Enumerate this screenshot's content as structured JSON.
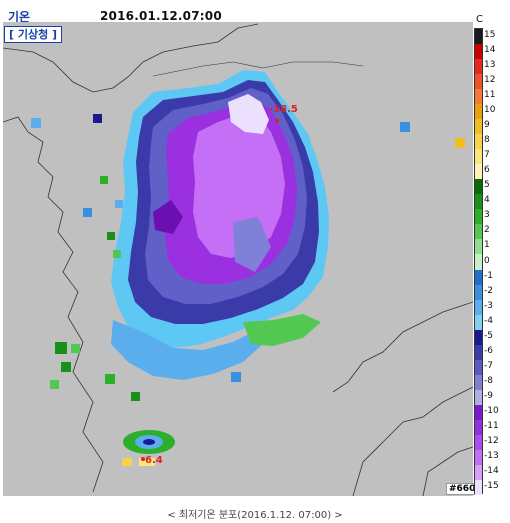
{
  "header": {
    "title": "기온",
    "datetime": "2016.01.12.07:00",
    "unit": "C",
    "agency": "[ 기상청 ]"
  },
  "map": {
    "background_color": "#c0c0c0",
    "land_line_color": "#333333",
    "min_label": "-18.5",
    "jeju_label": "6.4",
    "station_id": "#660"
  },
  "legend": {
    "ticks": [
      "15",
      "14",
      "13",
      "12",
      "11",
      "10",
      "9",
      "8",
      "7",
      "6",
      "5",
      "4",
      "3",
      "2",
      "1",
      "0",
      "-1",
      "-2",
      "-3",
      "-4",
      "-5",
      "-6",
      "-7",
      "-8",
      "-9",
      "-10",
      "-11",
      "-12",
      "-13",
      "-14",
      "-15"
    ],
    "colors": [
      "#1a1a1a",
      "#cc0000",
      "#e8281a",
      "#f0502a",
      "#f57a3a",
      "#e6a010",
      "#f2bd20",
      "#f5d34a",
      "#f8e680",
      "#fbf3b8",
      "#0b6b0b",
      "#18901a",
      "#2cb02c",
      "#52c852",
      "#8fdf8f",
      "#c8f0c8",
      "#2070c8",
      "#3b8fe0",
      "#5aaeee",
      "#86ccf5",
      "#1a1a8c",
      "#3a3aaa",
      "#5a5ac0",
      "#8080d0",
      "#b0b0e0",
      "#7a1ac8",
      "#9030e0",
      "#a84ff0",
      "#c070f5",
      "#d7a0f8",
      "#ece0ff"
    ]
  },
  "caption": "< 최저기온 분포(2016.1.12. 07:00) >"
}
